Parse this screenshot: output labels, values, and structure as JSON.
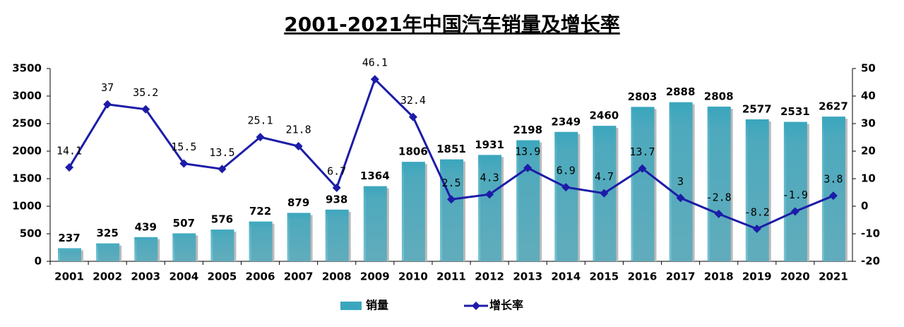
{
  "chart_data": {
    "type": "bar",
    "title": "2001-2021年中国汽车销量及增长率",
    "categories": [
      "2001",
      "2002",
      "2003",
      "2004",
      "2005",
      "2006",
      "2007",
      "2008",
      "2009",
      "2010",
      "2011",
      "2012",
      "2013",
      "2014",
      "2015",
      "2016",
      "2017",
      "2018",
      "2019",
      "2020",
      "2021"
    ],
    "series": [
      {
        "name": "销量",
        "type": "bar",
        "color": "#3aa6bd",
        "values": [
          237,
          325,
          439,
          507,
          576,
          722,
          879,
          938,
          1364,
          1806,
          1851,
          1931,
          2198,
          2349,
          2460,
          2803,
          2888,
          2808,
          2577,
          2531,
          2627
        ]
      },
      {
        "name": "增长率",
        "type": "line",
        "axis": "y2",
        "color": "#1c1ca8",
        "values": [
          14.1,
          37,
          35.2,
          15.5,
          13.5,
          25.1,
          21.8,
          6.7,
          46.1,
          32.4,
          2.5,
          4.3,
          13.9,
          6.9,
          4.7,
          13.7,
          3,
          -2.8,
          -8.2,
          -1.9,
          3.8
        ]
      }
    ],
    "ylim": [
      0,
      3500
    ],
    "yticks": [
      0,
      500,
      1000,
      1500,
      2000,
      2500,
      3000,
      3500
    ],
    "y2lim": [
      -20,
      50
    ],
    "y2ticks": [
      -20,
      -10,
      0,
      10,
      20,
      30,
      40,
      50
    ],
    "negative_label_color": "#ff0000",
    "legend": "bottom",
    "grid": false
  }
}
